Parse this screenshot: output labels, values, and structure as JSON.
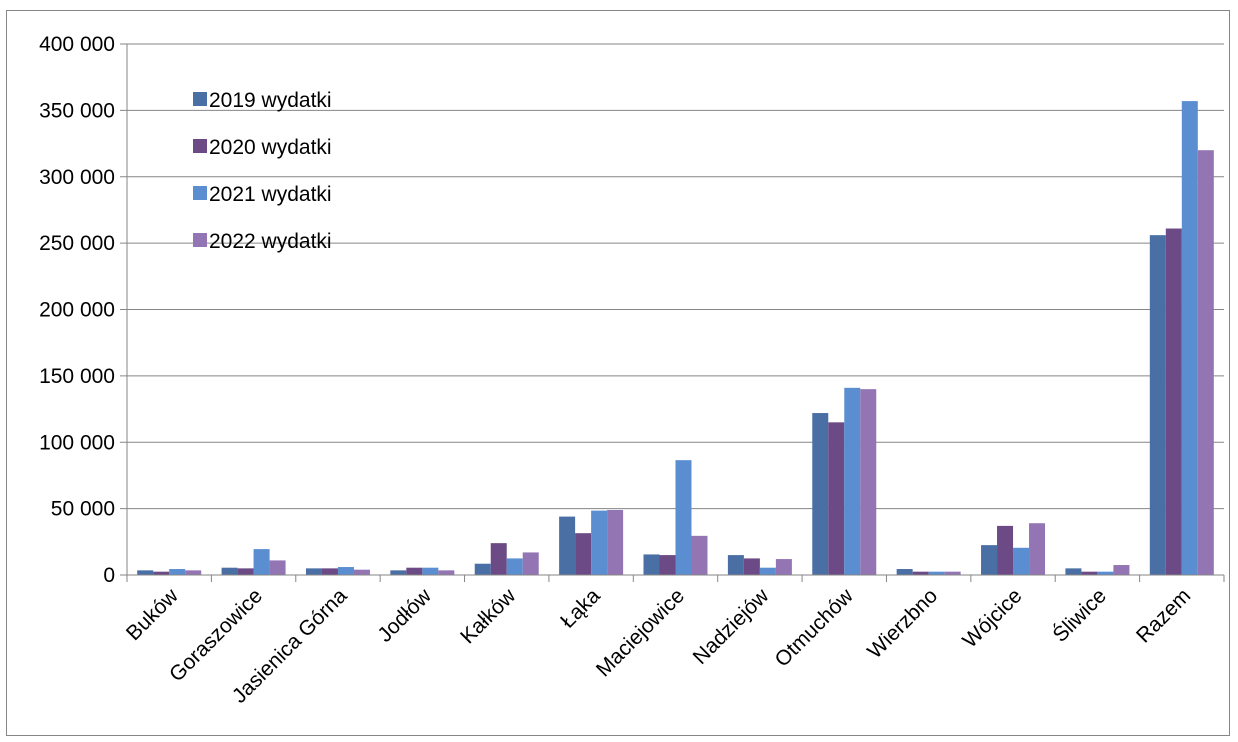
{
  "chart_data": {
    "type": "bar",
    "title": "",
    "xlabel": "",
    "ylabel": "",
    "categories": [
      "Buków",
      "Goraszowice",
      "Jasienica Górna",
      "Jodłów",
      "Kałków",
      "Łąka",
      "Maciejowice",
      "Nadziejów",
      "Otmuchów",
      "Wierzbno",
      "Wójcice",
      "Śliwice",
      "Razem"
    ],
    "series": [
      {
        "name": "2019 wydatki",
        "color": "#4a6fa5",
        "values": [
          3500,
          5500,
          5000,
          3500,
          8500,
          44000,
          15500,
          15000,
          122000,
          4500,
          22500,
          5000,
          256000
        ]
      },
      {
        "name": "2020 wydatki",
        "color": "#6b4a86",
        "values": [
          2500,
          5000,
          5000,
          5500,
          24000,
          31500,
          15000,
          12500,
          115000,
          2500,
          37000,
          2500,
          261000
        ]
      },
      {
        "name": "2021 wydatki",
        "color": "#5a8ed0",
        "values": [
          4500,
          19500,
          6000,
          5500,
          12500,
          48500,
          86500,
          5500,
          141000,
          2500,
          20500,
          2500,
          357000
        ]
      },
      {
        "name": "2022 wydatki",
        "color": "#9475b4",
        "values": [
          3500,
          11000,
          4000,
          3500,
          17000,
          49000,
          29500,
          12000,
          140000,
          2500,
          39000,
          7500,
          320000
        ]
      }
    ],
    "ylim": [
      0,
      400000
    ],
    "yticks": [
      0,
      50000,
      100000,
      150000,
      200000,
      250000,
      300000,
      350000,
      400000
    ],
    "ytick_labels": [
      "0",
      "50 000",
      "100 000",
      "150 000",
      "200 000",
      "250 000",
      "300 000",
      "350 000",
      "400 000"
    ],
    "grid": true,
    "legend_position": "top-left inside plot"
  }
}
